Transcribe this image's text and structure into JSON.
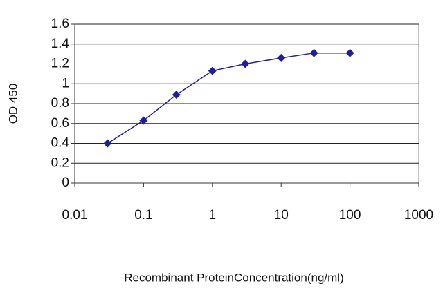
{
  "chart_data": {
    "type": "line",
    "x_label": "Recombinant ProteinConcentration(ng/ml)",
    "y_label": "OD 450",
    "x": [
      0.03,
      0.1,
      0.3,
      1,
      3,
      10,
      30,
      100
    ],
    "values": [
      0.4,
      0.63,
      0.89,
      1.13,
      1.2,
      1.26,
      1.31,
      1.31
    ],
    "color": "#1f1f9e",
    "log_x": true,
    "xlim": [
      0.01,
      1000
    ],
    "xticks": [
      0.01,
      0.1,
      1,
      10,
      100,
      1000
    ],
    "ylim": [
      0,
      1.6
    ],
    "yticks": [
      0,
      0.2,
      0.4,
      0.6,
      0.8,
      1,
      1.2,
      1.4,
      1.6
    ],
    "grid": true
  }
}
